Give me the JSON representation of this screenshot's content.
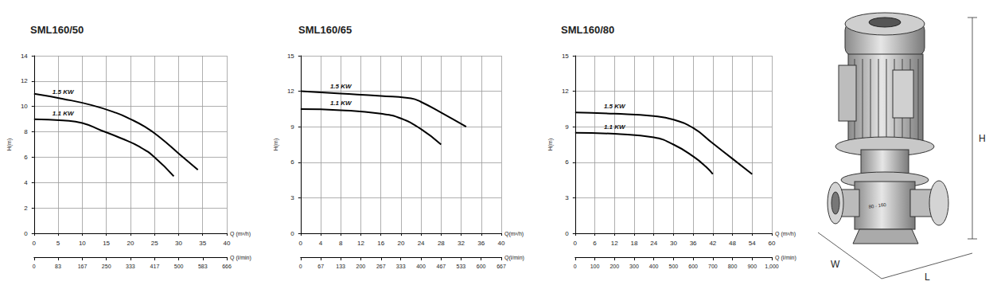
{
  "chart_data": [
    {
      "type": "line",
      "title": "SML160/50",
      "x_label": "Q (m³/h)",
      "x2_label": "Q (l/min)",
      "y_label": "H(m)",
      "xlim": [
        0,
        40
      ],
      "xticks": [
        0,
        5,
        10,
        15,
        20,
        25,
        30,
        35,
        40
      ],
      "x2lim": [
        0,
        666
      ],
      "x2ticks": [
        0,
        83,
        167,
        250,
        333,
        417,
        500,
        583,
        666
      ],
      "ylim": [
        0,
        14
      ],
      "yticks": [
        0,
        2,
        4,
        6,
        8,
        10,
        12,
        14
      ],
      "grid": true,
      "series": [
        {
          "name": "1.5 KW",
          "color": "#000000",
          "x": [
            0,
            6,
            12,
            17,
            20,
            23,
            26,
            30,
            34
          ],
          "values": [
            11,
            10.6,
            10.1,
            9.5,
            9,
            8.4,
            7.6,
            6.3,
            5
          ]
        },
        {
          "name": "1.1 KW",
          "color": "#000000",
          "x": [
            0,
            6,
            10,
            14,
            18,
            22,
            25,
            29
          ],
          "values": [
            9,
            8.9,
            8.7,
            8.1,
            7.5,
            6.8,
            6,
            4.5
          ]
        }
      ]
    },
    {
      "type": "line",
      "title": "SML160/65",
      "x_label": "Q(m³/h)",
      "x2_label": "Q(l/min)",
      "y_label": "H(m)",
      "xlim": [
        0,
        40
      ],
      "xticks": [
        0,
        4,
        8,
        12,
        16,
        20,
        24,
        28,
        32,
        36,
        40
      ],
      "x2lim": [
        0,
        667
      ],
      "x2ticks": [
        0,
        67,
        133,
        200,
        267,
        333,
        400,
        467,
        533,
        600,
        667
      ],
      "ylim": [
        0,
        15
      ],
      "yticks": [
        0,
        3,
        6,
        9,
        12,
        15
      ],
      "grid": true,
      "series": [
        {
          "name": "1.5 KW",
          "color": "#000000",
          "x": [
            0,
            8,
            16,
            22,
            24,
            28,
            33
          ],
          "values": [
            12,
            11.8,
            11.6,
            11.4,
            11.1,
            10.2,
            9
          ]
        },
        {
          "name": "1.1 KW",
          "color": "#000000",
          "x": [
            0,
            8,
            16,
            20,
            24,
            28
          ],
          "values": [
            10.5,
            10.4,
            10.1,
            9.7,
            8.8,
            7.5
          ]
        }
      ]
    },
    {
      "type": "line",
      "title": "SML160/80",
      "x_label": "Q (m³/h)",
      "x2_label": "Q (l/min)",
      "y_label": "H(m)",
      "xlim": [
        0,
        60
      ],
      "xticks": [
        0,
        6,
        12,
        18,
        24,
        30,
        36,
        42,
        48,
        54,
        60
      ],
      "x2lim": [
        0,
        1000
      ],
      "x2ticks": [
        0,
        100,
        200,
        300,
        400,
        500,
        600,
        700,
        800,
        900,
        1000
      ],
      "ylim": [
        0,
        15
      ],
      "yticks": [
        0,
        3,
        6,
        9,
        12,
        15
      ],
      "grid": true,
      "series": [
        {
          "name": "1.5 KW",
          "color": "#000000",
          "x": [
            0,
            12,
            24,
            30,
            36,
            42,
            48,
            54
          ],
          "values": [
            10.2,
            10.1,
            9.9,
            9.6,
            8.9,
            7.6,
            6.3,
            5
          ]
        },
        {
          "name": "1.1 KW",
          "color": "#000000",
          "x": [
            0,
            12,
            24,
            30,
            36,
            40,
            42
          ],
          "values": [
            8.5,
            8.4,
            8.1,
            7.5,
            6.5,
            5.6,
            5
          ]
        }
      ]
    }
  ],
  "illustration": {
    "nameplate": "80 - 160",
    "dimensions": [
      "H",
      "W",
      "L"
    ]
  }
}
